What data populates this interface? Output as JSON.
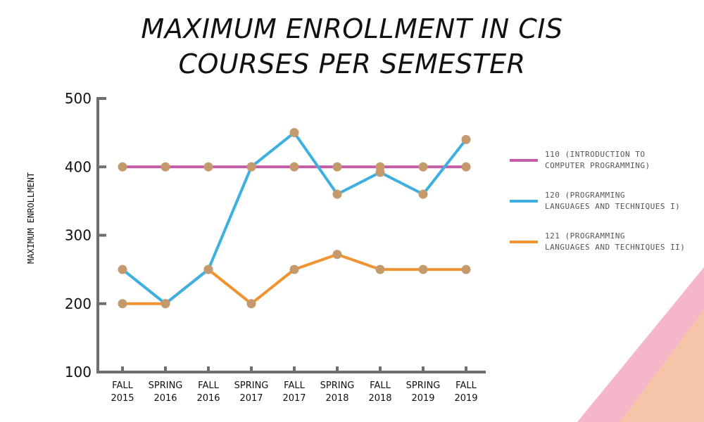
{
  "chart_data": {
    "type": "line",
    "title_lines": [
      "MAXIMUM ENROLLMENT IN CIS",
      "COURSES PER SEMESTER"
    ],
    "ylabel": "MAXIMUM ENROLLMENT",
    "xlabel": "",
    "ylim": [
      100,
      500
    ],
    "yticks": [
      100,
      200,
      300,
      400,
      500
    ],
    "categories": [
      [
        "FALL",
        "2015"
      ],
      [
        "SPRING",
        "2016"
      ],
      [
        "FALL",
        "2016"
      ],
      [
        "SPRING",
        "2017"
      ],
      [
        "FALL",
        "2017"
      ],
      [
        "SPRING",
        "2018"
      ],
      [
        "FALL",
        "2018"
      ],
      [
        "SPRING",
        "2019"
      ],
      [
        "FALL",
        "2019"
      ]
    ],
    "series": [
      {
        "name": "110 (INTRODUCTION TO COMPUTER PROGRAMMING)",
        "legend_lines": [
          "110 (INTRODUCTION TO",
          "COMPUTER PROGRAMMING)"
        ],
        "color": "#c45ca8",
        "values": [
          400,
          400,
          400,
          400,
          400,
          400,
          400,
          400,
          400
        ]
      },
      {
        "name": "120 (PROGRAMMING LANGUAGES AND TECHNIQUES I)",
        "legend_lines": [
          "120 (PROGRAMMING",
          "LANGUAGES AND TECHNIQUES I)"
        ],
        "color": "#3db0e0",
        "values": [
          250,
          200,
          250,
          400,
          450,
          360,
          392,
          360,
          440
        ]
      },
      {
        "name": "121 (PROGRAMMING LANGUAGES AND TECHNIQUES II)",
        "legend_lines": [
          "121 (PROGRAMMING",
          "LANGUAGES AND TECHNIQUES II)"
        ],
        "color": "#ef9430",
        "values": [
          200,
          200,
          250,
          200,
          250,
          272,
          250,
          250,
          250
        ]
      }
    ],
    "marker_color": "#c49a6c",
    "axis_color": "#6b6f6e",
    "grid": false,
    "legend_position": "right"
  }
}
